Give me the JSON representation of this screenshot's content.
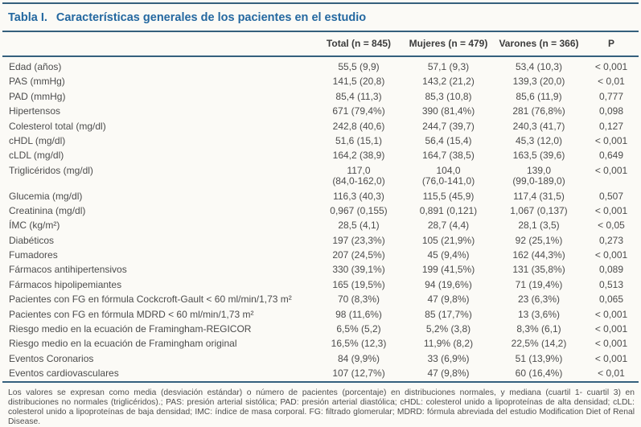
{
  "page": {
    "title_label": "Tabla I.",
    "title_text": "Características generales de los pacientes en el estudio"
  },
  "table": {
    "columns": {
      "total": "Total (n = 845)",
      "mujeres": "Mujeres (n = 479)",
      "varones": "Varones (n = 366)",
      "p": "P"
    },
    "rows": [
      {
        "label": "Edad (años)",
        "total": "55,5 (9,9)",
        "mujeres": "57,1 (9,3)",
        "varones": "53,4 (10,3)",
        "p": "< 0,001"
      },
      {
        "label": "PAS (mmHg)",
        "total": "141,5 (20,8)",
        "mujeres": "143,2 (21,2)",
        "varones": "139,3 (20,0)",
        "p": "< 0,01"
      },
      {
        "label": "PAD (mmHg)",
        "total": "85,4 (11,3)",
        "mujeres": "85,3 (10,8)",
        "varones": "85,6 (11,9)",
        "p": "0,777"
      },
      {
        "label": "Hipertensos",
        "total": "671 (79,4%)",
        "mujeres": "390 (81,4%)",
        "varones": "281 (76,8%)",
        "p": "0,098"
      },
      {
        "label": "Colesterol total (mg/dl)",
        "total": "242,8 (40,6)",
        "mujeres": "244,7 (39,7)",
        "varones": "240,3 (41,7)",
        "p": "0,127"
      },
      {
        "label": "cHDL (mg/dl)",
        "total": "51,6 (15,1)",
        "mujeres": "56,4 (15,4)",
        "varones": "45,3 (12,0)",
        "p": "< 0,001"
      },
      {
        "label": "cLDL (mg/dl)",
        "total": "164,2 (38,9)",
        "mujeres": "164,7 (38,5)",
        "varones": "163,5 (39,6)",
        "p": "0,649"
      },
      {
        "label": "Triglicéridos (mg/dl)",
        "total": "117,0",
        "total_sub": "(84,0-162,0)",
        "mujeres": "104,0",
        "mujeres_sub": "(76,0-141,0)",
        "varones": "139,0",
        "varones_sub": "(99,0-189,0)",
        "p": "< 0,001"
      },
      {
        "label": "Glucemia (mg/dl)",
        "total": "116,3 (40,3)",
        "mujeres": "115,5 (45,9)",
        "varones": "117,4 (31,5)",
        "p": "0,507"
      },
      {
        "label": "Creatinina (mg/dl)",
        "total": "0,967 (0,155)",
        "mujeres": "0,891 (0,121)",
        "varones": "1,067 (0,137)",
        "p": "< 0,001"
      },
      {
        "label": "ÍMC (kg/m²)",
        "total": "28,5 (4,1)",
        "mujeres": "28,7 (4,4)",
        "varones": "28,1 (3,5)",
        "p": "< 0,05"
      },
      {
        "label": "Diabéticos",
        "total": "197 (23,3%)",
        "mujeres": "105 (21,9%)",
        "varones": "92 (25,1%)",
        "p": "0,273"
      },
      {
        "label": "Fumadores",
        "total": "207 (24,5%)",
        "mujeres": "45 (9,4%)",
        "varones": "162 (44,3%)",
        "p": "< 0,001"
      },
      {
        "label": "Fármacos antihipertensivos",
        "total": "330 (39,1%)",
        "mujeres": "199 (41,5%)",
        "varones": "131 (35,8%)",
        "p": "0,089"
      },
      {
        "label": "Fármacos hipolipemiantes",
        "total": "165 (19,5%)",
        "mujeres": "94 (19,6%)",
        "varones": "71 (19,4%)",
        "p": "0,513"
      },
      {
        "label": "Pacientes con FG en fórmula Cockcroft-Gault < 60 ml/min/1,73 m²",
        "total": "70 (8,3%)",
        "mujeres": "47 (9,8%)",
        "varones": "23 (6,3%)",
        "p": "0,065"
      },
      {
        "label": "Pacientes con FG en fórmula MDRD < 60 ml/min/1,73 m²",
        "total": "98 (11,6%)",
        "mujeres": "85 (17,7%)",
        "varones": "13 (3,6%)",
        "p": "< 0,001"
      },
      {
        "label": "Riesgo medio en la ecuación de Framingham-REGICOR",
        "total": "6,5% (5,2)",
        "mujeres": "5,2% (3,8)",
        "varones": "8,3% (6,1)",
        "p": "< 0,001"
      },
      {
        "label": "Riesgo medio en la ecuación de Framingham original",
        "total": "16,5% (12,3)",
        "mujeres": "11,9% (8,2)",
        "varones": "22,5% (14,2)",
        "p": "< 0,001"
      },
      {
        "label": "Eventos Coronarios",
        "total": "84 (9,9%)",
        "mujeres": "33 (6,9%)",
        "varones": "51 (13,9%)",
        "p": "< 0,001"
      },
      {
        "label": "Eventos cardiovasculares",
        "total": "107 (12,7%)",
        "mujeres": "47 (9,8%)",
        "varones": "60 (16,4%)",
        "p": "< 0,01"
      }
    ]
  },
  "footnote": "Los valores se expresan como media (desviación estándar) o número de pacientes (porcentaje) en distribuciones normales, y mediana (cuartil 1- cuartil 3) en distribuciones no normales (triglicéridos).; PAS: presión arterial sistólica; PAD: presión arterial diastólica; cHDL: colesterol unido a lipoproteínas de alta densidad; cLDL: colesterol unido a lipoproteínas de baja densidad; IMC: índice de masa corporal. FG: filtrado glomerular; MDRD: fórmula abreviada del estudio Modification Diet of Renal Disease.",
  "colors": {
    "title_accent": "#2468a0",
    "rule": "#35607d"
  }
}
